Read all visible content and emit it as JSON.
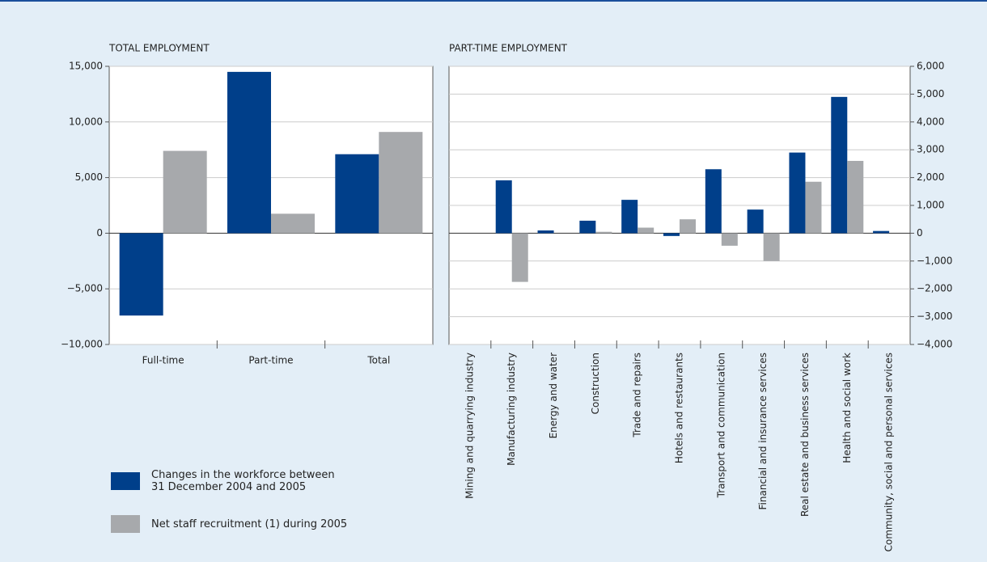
{
  "chart_data": [
    {
      "type": "bar",
      "title": "TOTAL EMPLOYMENT",
      "categories": [
        "Full-time",
        "Part-time",
        "Total"
      ],
      "series": [
        {
          "name": "Changes in the workforce between 31 December 2004 and 2005",
          "color": "#003f8a",
          "values": [
            -7400,
            14500,
            7100
          ]
        },
        {
          "name": "Net staff recruitment (1) during 2005",
          "color": "#a7a9ac",
          "values": [
            7400,
            1750,
            9100
          ]
        }
      ],
      "ylim": [
        -10000,
        15000
      ],
      "yticks": [
        {
          "value": -10000,
          "label": "−10,000"
        },
        {
          "value": -5000,
          "label": "−5,000"
        },
        0,
        {
          "value": 5000,
          "label": "5,000"
        },
        {
          "value": 10000,
          "label": "10,000"
        },
        {
          "value": 15000,
          "label": "15,000"
        }
      ],
      "grid": true,
      "axis_side": "left"
    },
    {
      "type": "bar",
      "title": "PART-TIME EMPLOYMENT",
      "categories": [
        "Mining and quarrying industry",
        "Manufacturing industry",
        "Energy and water",
        "Construction",
        "Trade and repairs",
        "Hotels and restaurants",
        "Transport and communication",
        "Financial and insurance services",
        "Real estate and business services",
        "Health and social work",
        "Community, social and personal services"
      ],
      "series": [
        {
          "color": "#003f8a",
          "values": [
            0,
            1900,
            100,
            450,
            1200,
            -100,
            2300,
            850,
            2900,
            4900,
            80
          ]
        },
        {
          "color": "#a7a9ac",
          "values": [
            0,
            -1750,
            0,
            50,
            200,
            500,
            -450,
            -1000,
            1850,
            2600,
            0
          ]
        }
      ],
      "ylim": [
        -4000,
        6000
      ],
      "yticks": [
        {
          "value": -4000,
          "label": "−4,000"
        },
        {
          "value": -3000,
          "label": "−3,000"
        },
        {
          "value": -2000,
          "label": "−2,000"
        },
        {
          "value": -1000,
          "label": "−1,000"
        },
        0,
        {
          "value": 1000,
          "label": "1,000"
        },
        {
          "value": 2000,
          "label": "2,000"
        },
        {
          "value": 3000,
          "label": "3,000"
        },
        {
          "value": 4000,
          "label": "4,000"
        },
        {
          "value": 5000,
          "label": "5,000"
        },
        {
          "value": 6000,
          "label": "6,000"
        }
      ],
      "grid": true,
      "axis_side": "right"
    }
  ]
}
